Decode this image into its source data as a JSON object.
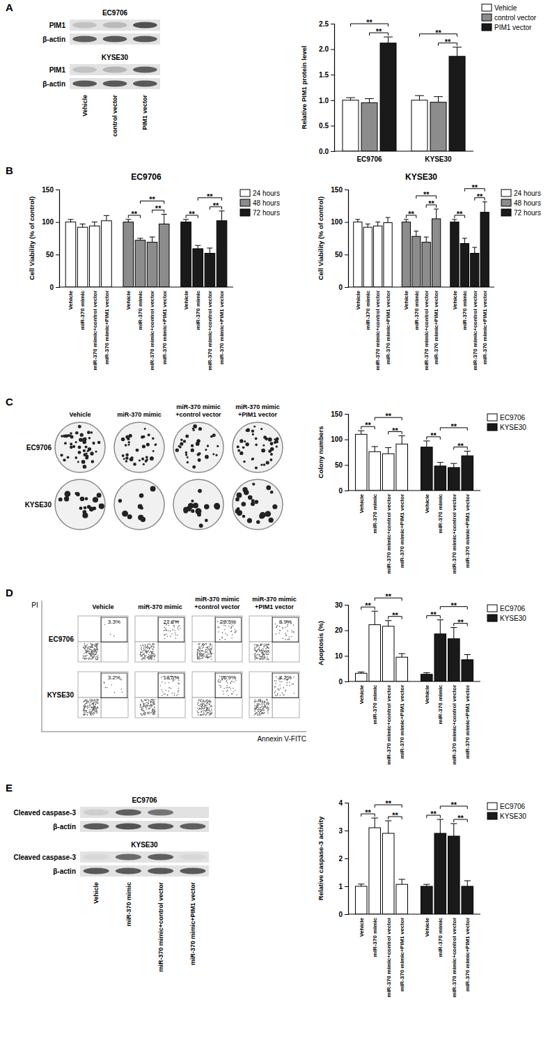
{
  "chart_data": [
    {
      "type": "bar",
      "y_label": "Relative PIM1 protein level",
      "categories": [
        "EC9706",
        "KYSE30"
      ],
      "series": [
        {
          "name": "Vehicle",
          "color": "#ffffff",
          "values": [
            1.0,
            1.0
          ],
          "errors": [
            0.05,
            0.09
          ]
        },
        {
          "name": "control vector",
          "color": "#8c8c8c",
          "values": [
            0.95,
            0.96
          ],
          "errors": [
            0.08,
            0.11
          ]
        },
        {
          "name": "PIM1 vector",
          "color": "#1a1a1a",
          "values": [
            2.12,
            1.86
          ],
          "errors": [
            0.12,
            0.18
          ]
        }
      ],
      "ylim": [
        0,
        2.5
      ],
      "yticks": [
        {
          "value": 0,
          "label": "0.0"
        },
        0.5,
        {
          "value": 1,
          "label": "1.0"
        },
        1.5,
        {
          "value": 2,
          "label": "2.0"
        },
        2.5
      ],
      "legend": "top-right",
      "brackets": [
        {
          "group": 0,
          "bars": [
            0,
            2
          ],
          "text": "**"
        },
        {
          "group": 0,
          "bars": [
            1,
            2
          ],
          "text": "**"
        },
        {
          "group": 1,
          "bars": [
            0,
            2
          ],
          "text": "**"
        },
        {
          "group": 1,
          "bars": [
            1,
            2
          ],
          "text": "**"
        }
      ]
    },
    {
      "type": "bar",
      "title": "EC9706",
      "y_label": "Cell Viability (% of control)",
      "categories": [
        "Vehicle",
        "miR-370 mimic",
        "miR-370 mimic+control vector",
        "miR-370 mimic+PIM1 vector"
      ],
      "series": [
        {
          "name": "24 hours",
          "color": "#ffffff",
          "values": [
            100,
            92,
            94,
            102
          ],
          "errors": [
            4,
            5,
            6,
            8
          ]
        },
        {
          "name": "48 hours",
          "color": "#8c8c8c",
          "values": [
            100,
            72,
            69,
            97
          ],
          "errors": [
            4,
            3,
            8,
            15
          ]
        },
        {
          "name": "72 hours",
          "color": "#1a1a1a",
          "values": [
            100,
            59,
            52,
            102
          ],
          "errors": [
            4,
            5,
            8,
            15
          ]
        }
      ],
      "ylim": [
        0,
        150
      ],
      "yticks": [
        0,
        50,
        100,
        150
      ],
      "legend": "top-right",
      "brackets": [
        {
          "group": 1,
          "bars": [
            0,
            1
          ],
          "text": "**"
        },
        {
          "group": 1,
          "bars": [
            2,
            3
          ],
          "text": "**"
        },
        {
          "group": 1,
          "bars": [
            1,
            3
          ],
          "text": "**"
        },
        {
          "group": 2,
          "bars": [
            0,
            1
          ],
          "text": "**"
        },
        {
          "group": 2,
          "bars": [
            2,
            3
          ],
          "text": "**"
        },
        {
          "group": 2,
          "bars": [
            1,
            3
          ],
          "text": "**"
        }
      ]
    },
    {
      "type": "bar",
      "title": "KYSE30",
      "y_label": "Cell Viability (% of control)",
      "categories": [
        "Vehicle",
        "miR-370 mimic",
        "miR-370 mimic+control vector",
        "miR-370 mimic+PIM1 vector"
      ],
      "series": [
        {
          "name": "24 hours",
          "color": "#ffffff",
          "values": [
            100,
            92,
            94,
            99
          ],
          "errors": [
            4,
            5,
            6,
            8
          ]
        },
        {
          "name": "48 hours",
          "color": "#8c8c8c",
          "values": [
            100,
            78,
            69,
            105
          ],
          "errors": [
            4,
            8,
            8,
            15
          ]
        },
        {
          "name": "72 hours",
          "color": "#1a1a1a",
          "values": [
            100,
            67,
            52,
            115
          ],
          "errors": [
            4,
            8,
            9,
            16
          ]
        }
      ],
      "ylim": [
        0,
        150
      ],
      "yticks": [
        0,
        50,
        100,
        150
      ],
      "legend": "top-right",
      "brackets": [
        {
          "group": 1,
          "bars": [
            0,
            1
          ],
          "text": "**"
        },
        {
          "group": 1,
          "bars": [
            2,
            3
          ],
          "text": "**"
        },
        {
          "group": 1,
          "bars": [
            1,
            3
          ],
          "text": "**"
        },
        {
          "group": 2,
          "bars": [
            0,
            1
          ],
          "text": "**"
        },
        {
          "group": 2,
          "bars": [
            2,
            3
          ],
          "text": "**"
        },
        {
          "group": 2,
          "bars": [
            1,
            3
          ],
          "text": "**"
        }
      ]
    },
    {
      "type": "bar",
      "y_label": "Colony numbers",
      "categories": [
        "Vehicle",
        "miR-370 mimic",
        "miR-370 mimic+control vector",
        "miR-370 mimic+PIM1 vector"
      ],
      "series": [
        {
          "name": "EC9706",
          "color": "#ffffff",
          "values": [
            110,
            76,
            72,
            91
          ],
          "errors": [
            7,
            10,
            12,
            16
          ]
        },
        {
          "name": "KYSE30",
          "color": "#1a1a1a",
          "values": [
            85,
            48,
            45,
            68
          ],
          "errors": [
            12,
            7,
            8,
            9
          ]
        }
      ],
      "ylim": [
        0,
        150
      ],
      "yticks": [
        0,
        50,
        100,
        150
      ],
      "legend": "top-right",
      "brackets": [
        {
          "group": 0,
          "bars": [
            0,
            1
          ],
          "text": "**"
        },
        {
          "group": 0,
          "bars": [
            2,
            3
          ],
          "text": "**"
        },
        {
          "group": 0,
          "bars": [
            1,
            3
          ],
          "text": "**"
        },
        {
          "group": 1,
          "bars": [
            0,
            1
          ],
          "text": "**"
        },
        {
          "group": 1,
          "bars": [
            2,
            3
          ],
          "text": "**"
        },
        {
          "group": 1,
          "bars": [
            1,
            3
          ],
          "text": "**"
        }
      ]
    },
    {
      "type": "bar",
      "y_label": "Apoptosis (%)",
      "categories": [
        "Vehicle",
        "miR-370 mimic",
        "miR-370 mimic+control vector",
        "miR-370 mimic+PIM1 vector"
      ],
      "series": [
        {
          "name": "EC9706",
          "color": "#ffffff",
          "values": [
            3.2,
            22.2,
            21.6,
            9.5
          ],
          "errors": [
            0.5,
            5.3,
            2.2,
            1.4
          ]
        },
        {
          "name": "KYSE30",
          "color": "#1a1a1a",
          "values": [
            2.8,
            18.6,
            16.7,
            8.5
          ],
          "errors": [
            0.6,
            5.5,
            4.4,
            2.0
          ]
        }
      ],
      "ylim": [
        0,
        30
      ],
      "yticks": [
        0,
        10,
        20,
        30
      ],
      "legend": "top-right",
      "brackets": [
        {
          "group": 0,
          "bars": [
            0,
            1
          ],
          "text": "**"
        },
        {
          "group": 0,
          "bars": [
            2,
            3
          ],
          "text": "**"
        },
        {
          "group": 0,
          "bars": [
            1,
            3
          ],
          "text": "**"
        },
        {
          "group": 1,
          "bars": [
            0,
            1
          ],
          "text": "**"
        },
        {
          "group": 1,
          "bars": [
            2,
            3
          ],
          "text": "**"
        },
        {
          "group": 1,
          "bars": [
            1,
            3
          ],
          "text": "**"
        }
      ]
    },
    {
      "type": "bar",
      "y_label": "Relative caspase-3 activity",
      "categories": [
        "Vehicle",
        "miR-370 mimic",
        "miR-370 mimic+control vector",
        "miR-370 mimic+PIM1 vector"
      ],
      "series": [
        {
          "name": "EC9706",
          "color": "#ffffff",
          "values": [
            1.0,
            3.1,
            2.9,
            1.07
          ],
          "errors": [
            0.08,
            0.35,
            0.45,
            0.18
          ]
        },
        {
          "name": "KYSE30",
          "color": "#1a1a1a",
          "values": [
            1.0,
            2.9,
            2.8,
            1.0
          ],
          "errors": [
            0.07,
            0.5,
            0.45,
            0.2
          ]
        }
      ],
      "ylim": [
        0,
        4
      ],
      "yticks": [
        0,
        1,
        2,
        3,
        4
      ],
      "legend": "top-right",
      "brackets": [
        {
          "group": 0,
          "bars": [
            0,
            1
          ],
          "text": "**"
        },
        {
          "group": 0,
          "bars": [
            2,
            3
          ],
          "text": "**"
        },
        {
          "group": 0,
          "bars": [
            1,
            3
          ],
          "text": "**"
        },
        {
          "group": 1,
          "bars": [
            0,
            1
          ],
          "text": "**"
        },
        {
          "group": 1,
          "bars": [
            2,
            3
          ],
          "text": "**"
        },
        {
          "group": 1,
          "bars": [
            1,
            3
          ],
          "text": "**"
        }
      ]
    }
  ],
  "figure": {
    "panel_labels": [
      "A",
      "B",
      "C",
      "D",
      "E"
    ],
    "blot_a": {
      "groups": [
        {
          "title": "EC9706",
          "rows": [
            "PIM1",
            "β-actin"
          ]
        },
        {
          "title": "KYSE30",
          "rows": [
            "PIM1",
            "β-actin"
          ]
        }
      ],
      "lanes": [
        "Vehicle",
        "control vector",
        "PIM1 vector"
      ]
    },
    "colonies": {
      "columns": [
        [
          "Vehicle"
        ],
        [
          "miR-370 mimic"
        ],
        [
          "miR-370 mimic",
          "+control vector"
        ],
        [
          "miR-370 mimic",
          "+PIM1 vector"
        ]
      ],
      "rows": [
        "EC9706",
        "KYSE30"
      ]
    },
    "flow": {
      "columns": [
        [
          "Vehicle"
        ],
        [
          "miR-370 mimic"
        ],
        [
          "miR-370 mimic",
          "+control vector"
        ],
        [
          "miR-370 mimic",
          "+PIM1 vector"
        ]
      ],
      "rows": [
        "EC9706",
        "KYSE30"
      ],
      "percentages": [
        [
          "3.3%",
          "21.8%",
          "20.5%",
          "8.9%"
        ],
        [
          "3.2%",
          "18.5%",
          "16.9%",
          "8.2%"
        ]
      ],
      "y_label": "PI",
      "x_label": "Annexin V-FITC"
    },
    "blot_e": {
      "groups": [
        {
          "title": "EC9706",
          "rows": [
            "Cleaved caspase-3",
            "β-actin"
          ]
        },
        {
          "title": "KYSE30",
          "rows": [
            "Cleaved caspase-3",
            "β-actin"
          ]
        }
      ],
      "lanes": [
        "Vehicle",
        "miR-370 mimic",
        "miR-370 mimic+control vector",
        "miR-370 mimic+PIM1 vector"
      ]
    }
  }
}
